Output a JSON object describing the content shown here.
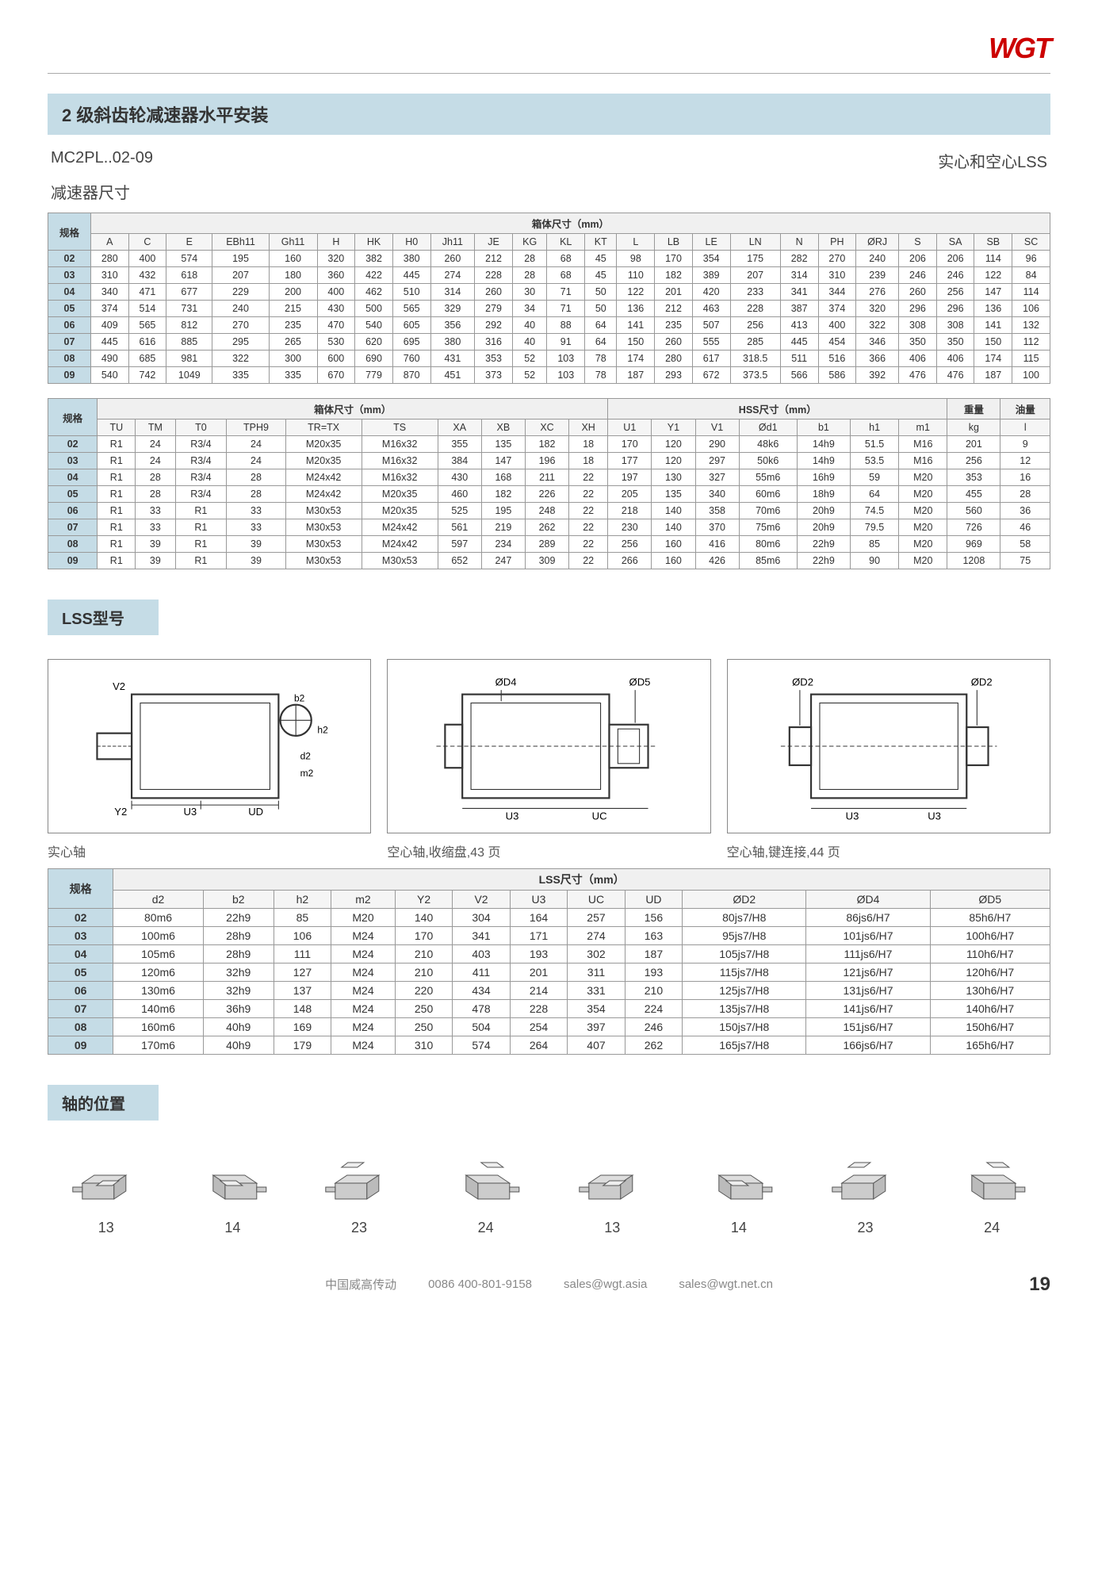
{
  "logo": "WGT",
  "title": "2 级斜齿轮减速器水平安装",
  "model_code": "MC2PL..02-09",
  "right_label": "实心和空心LSS",
  "section_dims": "减速器尺寸",
  "table1": {
    "band": "箱体尺寸（mm）",
    "spec_header": "规格",
    "cols": [
      "A",
      "C",
      "E",
      "EBh11",
      "Gh11",
      "H",
      "HK",
      "H0",
      "Jh11",
      "JE",
      "KG",
      "KL",
      "KT",
      "L",
      "LB",
      "LE",
      "LN",
      "N",
      "PH",
      "ØRJ",
      "S",
      "SA",
      "SB",
      "SC"
    ],
    "rows": [
      [
        "02",
        "280",
        "400",
        "574",
        "195",
        "160",
        "320",
        "382",
        "380",
        "260",
        "212",
        "28",
        "68",
        "45",
        "98",
        "170",
        "354",
        "175",
        "282",
        "270",
        "240",
        "206",
        "206",
        "114",
        "96"
      ],
      [
        "03",
        "310",
        "432",
        "618",
        "207",
        "180",
        "360",
        "422",
        "445",
        "274",
        "228",
        "28",
        "68",
        "45",
        "110",
        "182",
        "389",
        "207",
        "314",
        "310",
        "239",
        "246",
        "246",
        "122",
        "84"
      ],
      [
        "04",
        "340",
        "471",
        "677",
        "229",
        "200",
        "400",
        "462",
        "510",
        "314",
        "260",
        "30",
        "71",
        "50",
        "122",
        "201",
        "420",
        "233",
        "341",
        "344",
        "276",
        "260",
        "256",
        "147",
        "114"
      ],
      [
        "05",
        "374",
        "514",
        "731",
        "240",
        "215",
        "430",
        "500",
        "565",
        "329",
        "279",
        "34",
        "71",
        "50",
        "136",
        "212",
        "463",
        "228",
        "387",
        "374",
        "320",
        "296",
        "296",
        "136",
        "106"
      ],
      [
        "06",
        "409",
        "565",
        "812",
        "270",
        "235",
        "470",
        "540",
        "605",
        "356",
        "292",
        "40",
        "88",
        "64",
        "141",
        "235",
        "507",
        "256",
        "413",
        "400",
        "322",
        "308",
        "308",
        "141",
        "132"
      ],
      [
        "07",
        "445",
        "616",
        "885",
        "295",
        "265",
        "530",
        "620",
        "695",
        "380",
        "316",
        "40",
        "91",
        "64",
        "150",
        "260",
        "555",
        "285",
        "445",
        "454",
        "346",
        "350",
        "350",
        "150",
        "112"
      ],
      [
        "08",
        "490",
        "685",
        "981",
        "322",
        "300",
        "600",
        "690",
        "760",
        "431",
        "353",
        "52",
        "103",
        "78",
        "174",
        "280",
        "617",
        "318.5",
        "511",
        "516",
        "366",
        "406",
        "406",
        "174",
        "115"
      ],
      [
        "09",
        "540",
        "742",
        "1049",
        "335",
        "335",
        "670",
        "779",
        "870",
        "451",
        "373",
        "52",
        "103",
        "78",
        "187",
        "293",
        "672",
        "373.5",
        "566",
        "586",
        "392",
        "476",
        "476",
        "187",
        "100"
      ]
    ]
  },
  "table2": {
    "band1": "箱体尺寸（mm）",
    "band2": "HSS尺寸（mm）",
    "band3": "重量",
    "band4": "油量",
    "spec_header": "规格",
    "cols1": [
      "TU",
      "TM",
      "T0",
      "TPH9",
      "TR=TX",
      "TS",
      "XA",
      "XB",
      "XC",
      "XH"
    ],
    "cols2": [
      "U1",
      "Y1",
      "V1",
      "Ød1",
      "b1",
      "h1",
      "m1"
    ],
    "cols3": [
      "kg"
    ],
    "cols4": [
      "l"
    ],
    "rows": [
      [
        "02",
        "R1",
        "24",
        "R3/4",
        "24",
        "M20x35",
        "M16x32",
        "355",
        "135",
        "182",
        "18",
        "170",
        "120",
        "290",
        "48k6",
        "14h9",
        "51.5",
        "M16",
        "201",
        "9"
      ],
      [
        "03",
        "R1",
        "24",
        "R3/4",
        "24",
        "M20x35",
        "M16x32",
        "384",
        "147",
        "196",
        "18",
        "177",
        "120",
        "297",
        "50k6",
        "14h9",
        "53.5",
        "M16",
        "256",
        "12"
      ],
      [
        "04",
        "R1",
        "28",
        "R3/4",
        "28",
        "M24x42",
        "M16x32",
        "430",
        "168",
        "211",
        "22",
        "197",
        "130",
        "327",
        "55m6",
        "16h9",
        "59",
        "M20",
        "353",
        "16"
      ],
      [
        "05",
        "R1",
        "28",
        "R3/4",
        "28",
        "M24x42",
        "M20x35",
        "460",
        "182",
        "226",
        "22",
        "205",
        "135",
        "340",
        "60m6",
        "18h9",
        "64",
        "M20",
        "455",
        "28"
      ],
      [
        "06",
        "R1",
        "33",
        "R1",
        "33",
        "M30x53",
        "M20x35",
        "525",
        "195",
        "248",
        "22",
        "218",
        "140",
        "358",
        "70m6",
        "20h9",
        "74.5",
        "M20",
        "560",
        "36"
      ],
      [
        "07",
        "R1",
        "33",
        "R1",
        "33",
        "M30x53",
        "M24x42",
        "561",
        "219",
        "262",
        "22",
        "230",
        "140",
        "370",
        "75m6",
        "20h9",
        "79.5",
        "M20",
        "726",
        "46"
      ],
      [
        "08",
        "R1",
        "39",
        "R1",
        "39",
        "M30x53",
        "M24x42",
        "597",
        "234",
        "289",
        "22",
        "256",
        "160",
        "416",
        "80m6",
        "22h9",
        "85",
        "M20",
        "969",
        "58"
      ],
      [
        "09",
        "R1",
        "39",
        "R1",
        "39",
        "M30x53",
        "M30x53",
        "652",
        "247",
        "309",
        "22",
        "266",
        "160",
        "426",
        "85m6",
        "22h9",
        "90",
        "M20",
        "1208",
        "75"
      ]
    ]
  },
  "lss_label": "LSS型号",
  "diagram_captions": [
    "实心轴",
    "空心轴,收缩盘,43 页",
    "空心轴,键连接,44 页"
  ],
  "table3": {
    "band": "LSS尺寸（mm）",
    "spec_header": "规格",
    "cols": [
      "d2",
      "b2",
      "h2",
      "m2",
      "Y2",
      "V2",
      "U3",
      "UC",
      "UD",
      "ØD2",
      "ØD4",
      "ØD5"
    ],
    "rows": [
      [
        "02",
        "80m6",
        "22h9",
        "85",
        "M20",
        "140",
        "304",
        "164",
        "257",
        "156",
        "80js7/H8",
        "86js6/H7",
        "85h6/H7"
      ],
      [
        "03",
        "100m6",
        "28h9",
        "106",
        "M24",
        "170",
        "341",
        "171",
        "274",
        "163",
        "95js7/H8",
        "101js6/H7",
        "100h6/H7"
      ],
      [
        "04",
        "105m6",
        "28h9",
        "111",
        "M24",
        "210",
        "403",
        "193",
        "302",
        "187",
        "105js7/H8",
        "111js6/H7",
        "110h6/H7"
      ],
      [
        "05",
        "120m6",
        "32h9",
        "127",
        "M24",
        "210",
        "411",
        "201",
        "311",
        "193",
        "115js7/H8",
        "121js6/H7",
        "120h6/H7"
      ],
      [
        "06",
        "130m6",
        "32h9",
        "137",
        "M24",
        "220",
        "434",
        "214",
        "331",
        "210",
        "125js7/H8",
        "131js6/H7",
        "130h6/H7"
      ],
      [
        "07",
        "140m6",
        "36h9",
        "148",
        "M24",
        "250",
        "478",
        "228",
        "354",
        "224",
        "135js7/H8",
        "141js6/H7",
        "140h6/H7"
      ],
      [
        "08",
        "160m6",
        "40h9",
        "169",
        "M24",
        "250",
        "504",
        "254",
        "397",
        "246",
        "150js7/H8",
        "151js6/H7",
        "150h6/H7"
      ],
      [
        "09",
        "170m6",
        "40h9",
        "179",
        "M24",
        "310",
        "574",
        "264",
        "407",
        "262",
        "165js7/H8",
        "166js6/H7",
        "165h6/H7"
      ]
    ]
  },
  "shaft_label": "轴的位置",
  "shaft_nums": [
    "13",
    "14",
    "23",
    "24",
    "13",
    "14",
    "23",
    "24"
  ],
  "footer": {
    "company": "中国威高传动",
    "phone": "0086 400-801-9158",
    "email1": "sales@wgt.asia",
    "email2": "sales@wgt.net.cn",
    "page": "19"
  }
}
